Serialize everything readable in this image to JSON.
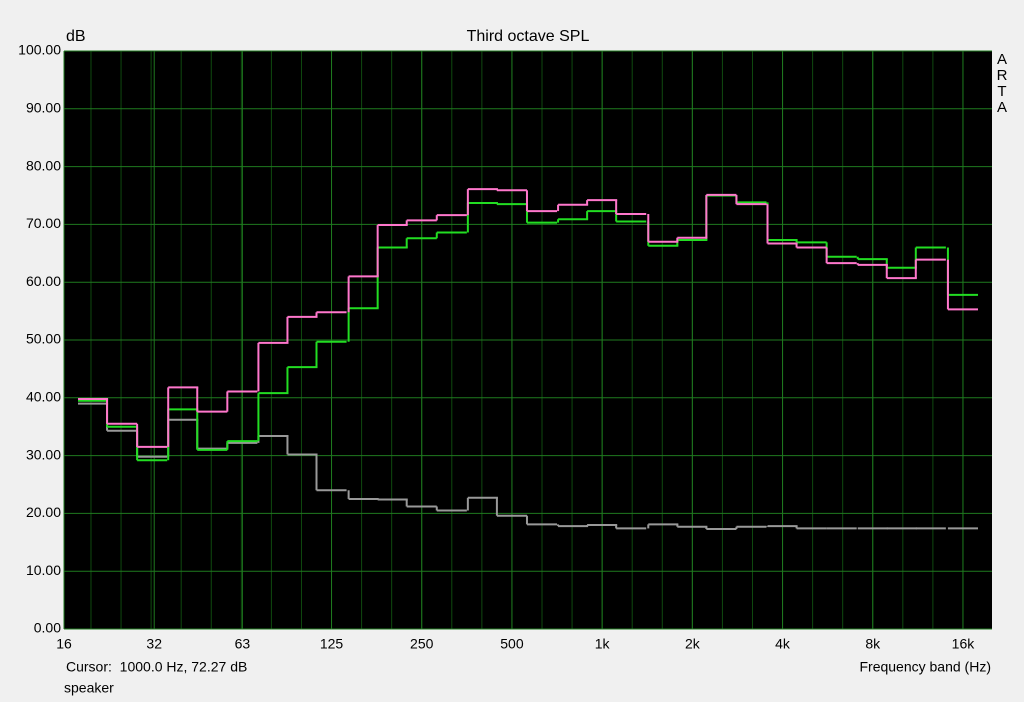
{
  "chart_data": {
    "type": "step",
    "title": "Third octave SPL",
    "ylabel": "dB",
    "xlabel": "Frequency band (Hz)",
    "watermark": "ARTA",
    "annotations": [
      "Cursor:  1000.0 Hz, 72.27 dB",
      "speaker"
    ],
    "log_x": true,
    "grid": true,
    "xlim": [
      16,
      20000
    ],
    "ylim": [
      0,
      100
    ],
    "xticks": [
      16,
      32,
      63,
      125,
      250,
      500,
      {
        "value": 1000,
        "label": "1k"
      },
      {
        "value": 2000,
        "label": "2k"
      },
      {
        "value": 4000,
        "label": "4k"
      },
      {
        "value": 8000,
        "label": "8k"
      },
      {
        "value": 16000,
        "label": "16k"
      }
    ],
    "yticks": [
      {
        "value": 0,
        "label": "0.00"
      },
      {
        "value": 10,
        "label": "10.00"
      },
      {
        "value": 20,
        "label": "20.00"
      },
      {
        "value": 30,
        "label": "30.00"
      },
      {
        "value": 40,
        "label": "40.00"
      },
      {
        "value": 50,
        "label": "50.00"
      },
      {
        "value": 60,
        "label": "60.00"
      },
      {
        "value": 70,
        "label": "70.00"
      },
      {
        "value": 80,
        "label": "80.00"
      },
      {
        "value": 90,
        "label": "90.00"
      },
      {
        "value": 100,
        "label": "100.00"
      }
    ],
    "x": [
      20,
      25,
      31.5,
      40,
      50,
      63,
      80,
      100,
      125,
      160,
      200,
      250,
      315,
      400,
      500,
      630,
      800,
      1000,
      1250,
      1600,
      2000,
      2500,
      3150,
      4000,
      5000,
      6300,
      8000,
      10000,
      12500,
      16000
    ],
    "series": [
      {
        "color": "#999999",
        "values": [
          39,
          34.3,
          29.8,
          36.2,
          31.2,
          32.2,
          33.4,
          30.2,
          24,
          22.5,
          22.4,
          21.2,
          20.5,
          22.7,
          19.6,
          18.1,
          17.8,
          18,
          17.4,
          18.1,
          17.7,
          17.3,
          17.7,
          17.8,
          17.4,
          17.4,
          17.4,
          17.4,
          17.4,
          17.4
        ]
      },
      {
        "color": "#22dd22",
        "values": [
          39.5,
          35,
          29.2,
          38,
          31,
          32.5,
          40.8,
          45.3,
          49.7,
          55.5,
          66,
          67.6,
          68.6,
          73.7,
          73.5,
          70.3,
          70.9,
          72.3,
          70.5,
          66.3,
          67.3,
          75,
          73.8,
          67.3,
          66.9,
          64.4,
          64,
          62.5,
          66,
          57.8
        ]
      },
      {
        "color": "#ff77cc",
        "values": [
          39.8,
          35.5,
          31.5,
          41.8,
          37.6,
          41.1,
          49.5,
          54,
          54.8,
          61,
          69.9,
          70.7,
          71.6,
          76.1,
          75.9,
          72.3,
          73.4,
          74.2,
          71.8,
          67,
          67.7,
          75.1,
          73.5,
          66.7,
          66,
          63.3,
          63,
          60.7,
          63.9,
          55.3
        ]
      }
    ]
  }
}
